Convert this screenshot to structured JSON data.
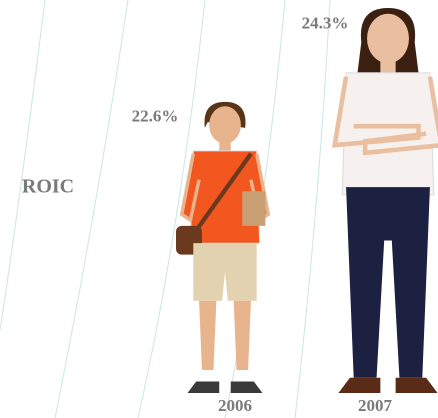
{
  "chart_data": {
    "type": "pictograph",
    "ylabel": "ROIC",
    "categories": [
      "2006",
      "2007"
    ],
    "values": [
      22.6,
      24.3
    ],
    "value_labels": [
      "22.6%",
      "24.3%"
    ]
  }
}
